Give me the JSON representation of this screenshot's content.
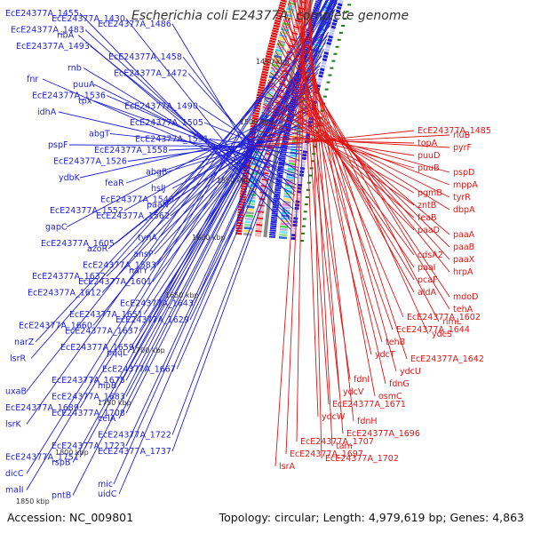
{
  "title": "Escherichia coli E24377A, complete genome",
  "accession": "Accession: NC_009801",
  "topology": "Topology: circular; Length: 4,979,619 bp; Genes: 4,863",
  "colors": {
    "plus_strand": "#1f1fd6",
    "minus_strand": "#e01414",
    "backbone": "#888888",
    "tick": "#1a7a1a"
  },
  "ticks": [
    "1450 kbp",
    "1500 kbp",
    "1550 kbp",
    "1600 kbp",
    "1650 kbp",
    "1700 kbp",
    "1750 kbp",
    "1800 kbp",
    "1850 kbp"
  ],
  "left_labels": [
    "EcE24377A_1455",
    "EcE24377A_1430",
    "EcE24377A_1486",
    "EcE24377A_1483",
    "ribA",
    "EcE24377A_1458",
    "EcE24377A_1493",
    "rnb",
    "EcE24377A_1472",
    "fnr",
    "puuA",
    "EcE24377A_1490",
    "EcE24377A_1536",
    "tpx",
    "EcE24377A_1505",
    "idhA",
    "abgT",
    "EcE24377A_1531",
    "pspF",
    "EcE24377A_1558",
    "abgB",
    "EcE24377A_1526",
    "feaR",
    "hslJ",
    "ydbK",
    "EcE24377A_1540",
    "paaN",
    "EcE24377A_1552",
    "EcE24377A_1562",
    "tynA",
    "gapC",
    "azoR",
    "ansP",
    "EcE24377A_1605",
    "EcE24377A_1583",
    "narY",
    "EcE24377A_1632",
    "EcE24377A_1601",
    "EcE24377A_1643",
    "EcE24377A_1612",
    "EcE24377A_1651",
    "EcE24377A_1629",
    "EcE24377A_1660",
    "EcE24377A_1637",
    "pqqL",
    "narZ",
    "EcE24377A_1659",
    "EcE24377A_1667",
    "lsrR",
    "EcE24377A_1675",
    "hipB",
    "uxaB",
    "EcE24377A_1683",
    "celA",
    "EcE24377A_1689",
    "EcE24377A_1708",
    "EcE24377A_1722",
    "lsrK",
    "EcE24377A_1723",
    "EcE24377A_1737",
    "EcE24377A_1751",
    "rspB",
    "mic",
    "dicC",
    "pntB",
    "uidC",
    "malI"
  ],
  "right_labels": [
    "EcE24377A_1485",
    "rluB",
    "topA",
    "pyrF",
    "puuD",
    "pspD",
    "puuB",
    "mppA",
    "pgmB",
    "tyrR",
    "zntB",
    "dbpA",
    "feaB",
    "paaA",
    "paaD",
    "paaB",
    "cdsA2",
    "paaX",
    "paaI",
    "hrpA",
    "pcaF",
    "mdoD",
    "aldA",
    "tehA",
    "EcE24377A_1602",
    "rimL",
    "EcE24377A_1644",
    "ydcS",
    "tehB",
    "EcE24377A_1642",
    "ydcT",
    "ydcU",
    "fdnI",
    "fdnG",
    "ydcV",
    "osmC",
    "EcE24377A_1671",
    "fdnH",
    "ydcW",
    "EcE24377A_1696",
    "EcE24377A_1707",
    "tam",
    "EcE24377A_1697",
    "EcE24377A_1702",
    "lsrA"
  ]
}
